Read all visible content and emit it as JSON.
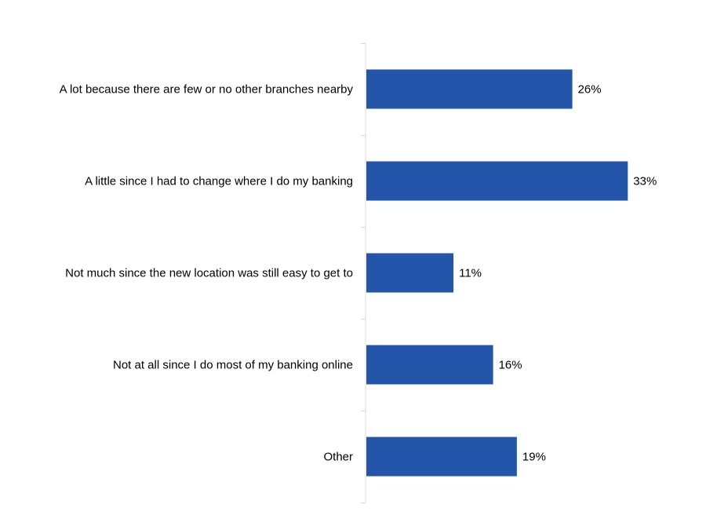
{
  "chart_data": {
    "type": "bar",
    "orientation": "horizontal",
    "categories": [
      "A lot because there are few or no other branches nearby",
      "A little since I had to change where I do my banking",
      "Not much since the new location was still easy to get to",
      "Not at all since I do most of my banking online",
      "Other"
    ],
    "values": [
      26,
      33,
      11,
      16,
      19
    ],
    "value_labels": [
      "26%",
      "33%",
      "11%",
      "16%",
      "19%"
    ],
    "unit": "%",
    "xlim": [
      0,
      40
    ],
    "grid": false,
    "legend": "none",
    "bar_color": "#2356AA",
    "axis_color": "#D9D9D9"
  }
}
